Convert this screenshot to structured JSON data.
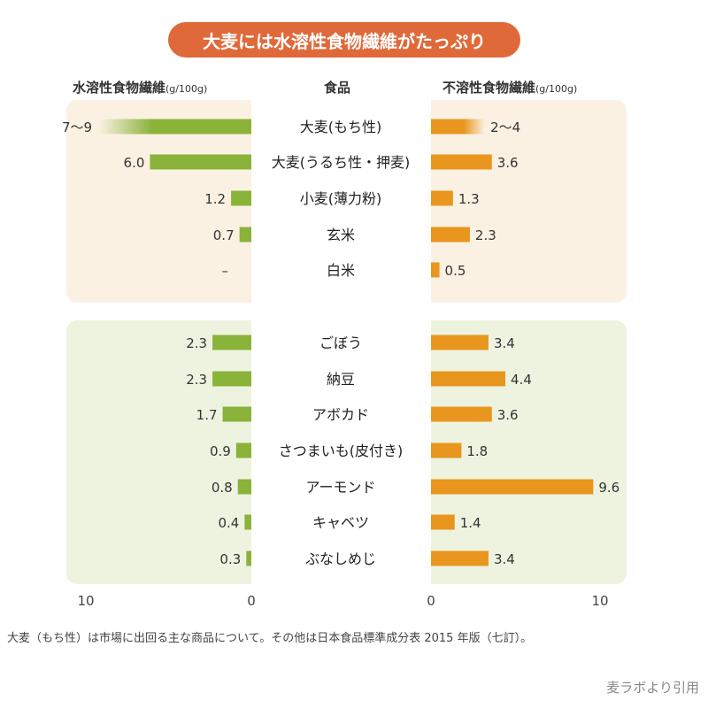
{
  "title": "大麦には水溶性食物繊維がたっぷり",
  "headers": {
    "left": "水溶性食物繊維",
    "left_unit": "(g/100g)",
    "center": "食品",
    "right": "不溶性食物繊維",
    "right_unit": "(g/100g)"
  },
  "footnote": "大麦（もち性）は市場に出回る主な商品について。その他は日本食品標準成分表 2015 年版（七訂）。",
  "credit": "麦ラボより引用",
  "colors": {
    "soluble": "#8ab33a",
    "insoluble": "#e8961e",
    "group1_bg": "#fbf1e3",
    "group2_bg": "#eef3e0",
    "title_bg": "#e0693a"
  },
  "chart_data": {
    "type": "bar",
    "orientation": "horizontal-butterfly",
    "xlim": [
      0,
      10
    ],
    "left_ticks": [
      "10",
      "0"
    ],
    "right_ticks": [
      "0",
      "10"
    ],
    "groups": [
      {
        "name": "grains",
        "items": [
          {
            "label": "大麦(もち性)",
            "soluble": 8,
            "soluble_label": "7〜9",
            "soluble_range": [
              7,
              9
            ],
            "insoluble": 3,
            "insoluble_label": "2〜4",
            "insoluble_range": [
              2,
              4
            ]
          },
          {
            "label": "大麦(うるち性・押麦)",
            "soluble": 6.0,
            "soluble_label": "6.0",
            "insoluble": 3.6,
            "insoluble_label": "3.6"
          },
          {
            "label": "小麦(薄力粉)",
            "soluble": 1.2,
            "soluble_label": "1.2",
            "insoluble": 1.3,
            "insoluble_label": "1.3"
          },
          {
            "label": "玄米",
            "soluble": 0.7,
            "soluble_label": "0.7",
            "insoluble": 2.3,
            "insoluble_label": "2.3"
          },
          {
            "label": "白米",
            "soluble": 0,
            "soluble_label": "–",
            "insoluble": 0.5,
            "insoluble_label": "0.5"
          }
        ]
      },
      {
        "name": "others",
        "items": [
          {
            "label": "ごぼう",
            "soluble": 2.3,
            "soluble_label": "2.3",
            "insoluble": 3.4,
            "insoluble_label": "3.4"
          },
          {
            "label": "納豆",
            "soluble": 2.3,
            "soluble_label": "2.3",
            "insoluble": 4.4,
            "insoluble_label": "4.4"
          },
          {
            "label": "アボカド",
            "soluble": 1.7,
            "soluble_label": "1.7",
            "insoluble": 3.6,
            "insoluble_label": "3.6"
          },
          {
            "label": "さつまいも(皮付き)",
            "soluble": 0.9,
            "soluble_label": "0.9",
            "insoluble": 1.8,
            "insoluble_label": "1.8"
          },
          {
            "label": "アーモンド",
            "soluble": 0.8,
            "soluble_label": "0.8",
            "insoluble": 9.6,
            "insoluble_label": "9.6"
          },
          {
            "label": "キャベツ",
            "soluble": 0.4,
            "soluble_label": "0.4",
            "insoluble": 1.4,
            "insoluble_label": "1.4"
          },
          {
            "label": "ぶなしめじ",
            "soluble": 0.3,
            "soluble_label": "0.3",
            "insoluble": 3.4,
            "insoluble_label": "3.4"
          }
        ]
      }
    ]
  }
}
